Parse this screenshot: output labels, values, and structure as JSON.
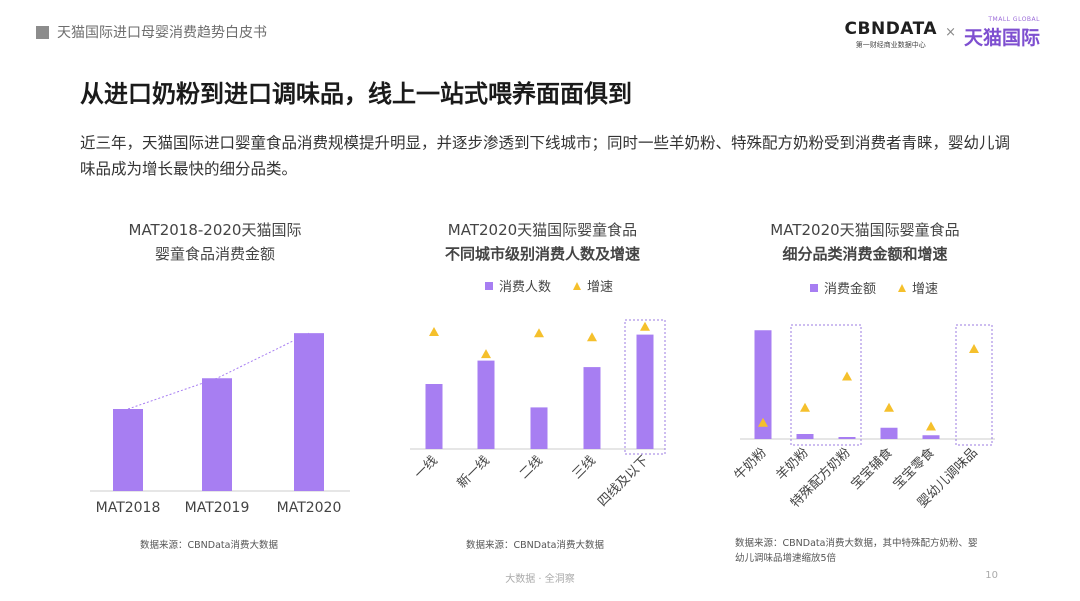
{
  "header": {
    "text": "天猫国际进口母婴消费趋势白皮书"
  },
  "logo": {
    "cbn_main": "CBNDATA",
    "cbn_sub": "第一财经商业数据中心",
    "x": "×",
    "tmall_en": "TMALL GLOBAL",
    "tmall_cn": "天猫国际"
  },
  "title": "从进口奶粉到进口调味品，线上一站式喂养面面俱到",
  "subtitle": "近三年，天猫国际进口婴童食品消费规模提升明显，并逐步渗透到下线城市；同时一些羊奶粉、特殊配方奶粉受到消费者青睐，婴幼儿调味品成为增长最快的细分品类。",
  "colors": {
    "bar": "#a77ef2",
    "marker": "#f5c02c",
    "highlight_border": "#9b7be0",
    "trend_line": "#a77ef2"
  },
  "chart_data": [
    {
      "type": "bar",
      "title_line1": "MAT2018-2020天猫国际",
      "title_line2": "婴童食品消费金额",
      "categories": [
        "MAT2018",
        "MAT2019",
        "MAT2020"
      ],
      "values": [
        0.4,
        0.55,
        0.77
      ],
      "trend_line": true,
      "ylim": [
        0,
        1
      ],
      "source": "数据来源：CBNData消费大数据"
    },
    {
      "type": "bar",
      "title_line1": "MAT2020天猫国际婴童食品",
      "title_line2": "不同城市级别消费人数及增速",
      "legend": [
        "消费人数",
        "增速"
      ],
      "categories": [
        "一线",
        "新一线",
        "二线",
        "三线",
        "四线及以下"
      ],
      "series": [
        {
          "name": "消费人数",
          "values": [
            0.5,
            0.68,
            0.32,
            0.63,
            0.88
          ]
        },
        {
          "name": "增速",
          "values": [
            0.9,
            0.73,
            0.89,
            0.86,
            0.94
          ]
        }
      ],
      "highlight": [
        "四线及以下"
      ],
      "ylim": [
        0,
        1
      ],
      "source": "数据来源：CBNData消费大数据"
    },
    {
      "type": "bar",
      "title_line1": "MAT2020天猫国际婴童食品",
      "title_line2": "细分品类消费金额和增速",
      "legend": [
        "消费金额",
        "增速"
      ],
      "categories": [
        "牛奶粉",
        "羊奶粉",
        "特殊配方奶粉",
        "宝宝辅食",
        "宝宝零食",
        "婴幼儿调味品"
      ],
      "series": [
        {
          "name": "消费金额",
          "values": [
            0.87,
            0.04,
            0.015,
            0.09,
            0.03,
            0.0
          ]
        },
        {
          "name": "增速",
          "values": [
            0.13,
            0.25,
            0.5,
            0.25,
            0.1,
            0.72
          ]
        }
      ],
      "highlight_groups": [
        [
          "羊奶粉",
          "特殊配方奶粉"
        ],
        [
          "婴幼儿调味品"
        ]
      ],
      "ylim": [
        0,
        1
      ],
      "source_line1": "数据来源：CBNData消费大数据，其中特殊配方奶粉、婴",
      "source_line2": "幼儿调味品增速缩放5倍"
    }
  ],
  "footer": "大数据 · 全洞察",
  "page_number": "10"
}
